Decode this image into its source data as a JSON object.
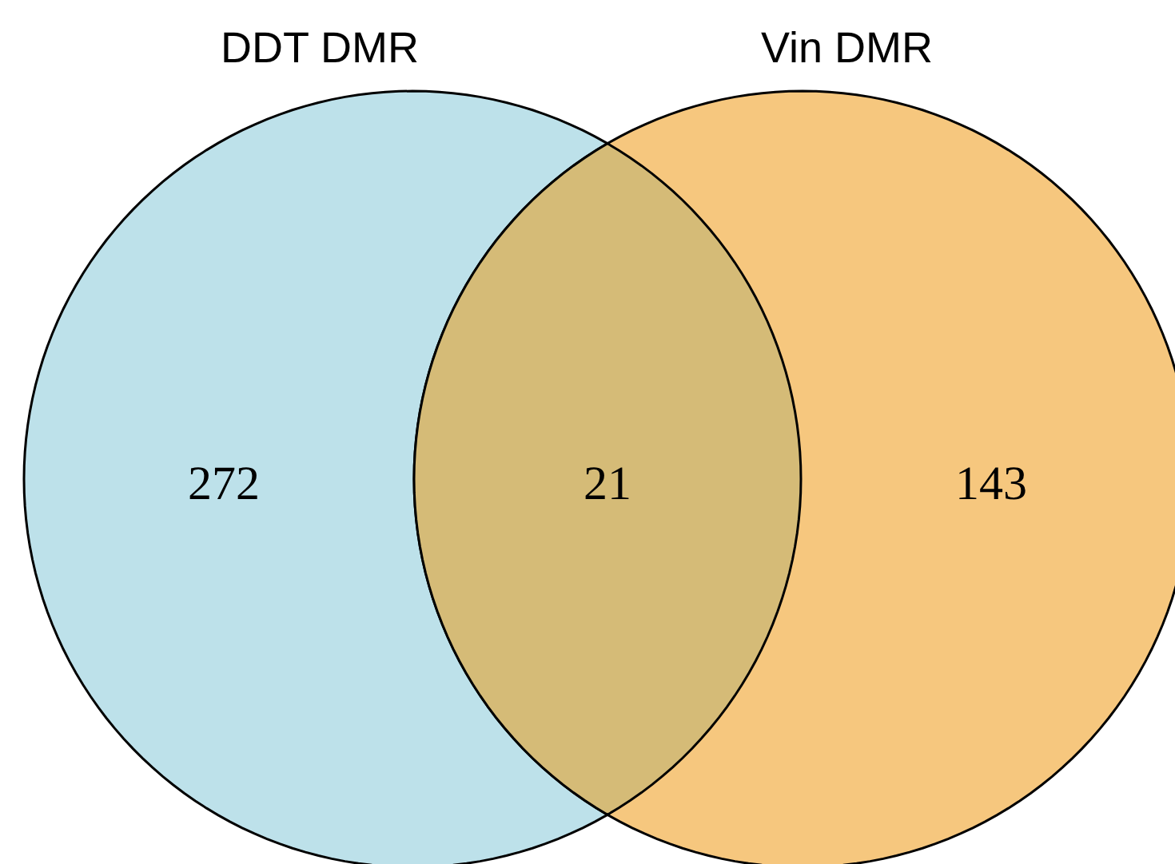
{
  "chart_data": {
    "type": "other",
    "annotations": [
      "DDT DMR",
      "Vin DMR"
    ],
    "categories": [
      null,
      null,
      null
    ],
    "values": [
      272,
      21,
      143
    ],
    "colors": [
      "#bde1ea",
      "#d5bb77",
      "#f6c77e"
    ],
    "data_labels": true
  }
}
